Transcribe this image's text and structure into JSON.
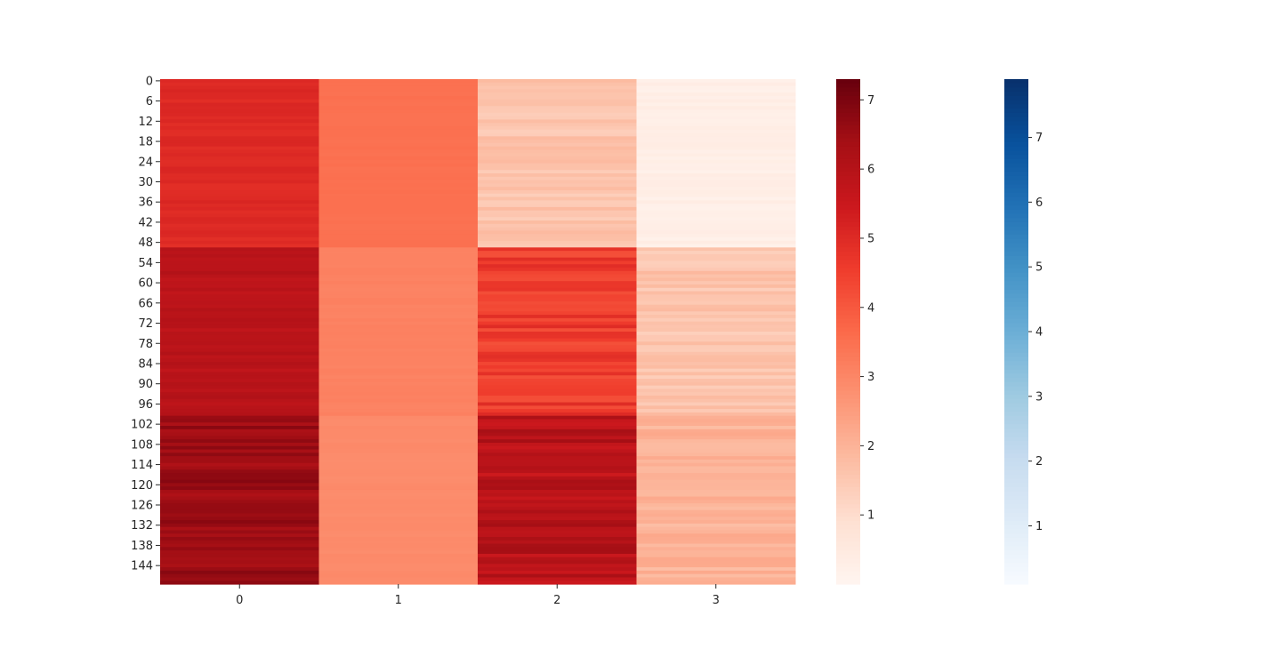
{
  "chart_data": {
    "type": "heatmap",
    "title": "",
    "xlabel": "",
    "ylabel": "",
    "n_rows": 150,
    "columns": [
      "0",
      "1",
      "2",
      "3"
    ],
    "row_tick_labels": [
      "0",
      "6",
      "12",
      "18",
      "24",
      "30",
      "36",
      "42",
      "48",
      "54",
      "60",
      "66",
      "72",
      "78",
      "84",
      "90",
      "96",
      "102",
      "108",
      "114",
      "120",
      "126",
      "132",
      "138",
      "144"
    ],
    "row_tick_step": 6,
    "colormap": "Reds",
    "value_range": [
      0.0,
      7.3
    ],
    "column_profiles": [
      {
        "column": "0",
        "segments": [
          {
            "rows": [
              0,
              49
            ],
            "mean": 5.0,
            "jitter": 0.15
          },
          {
            "rows": [
              50,
              99
            ],
            "mean": 5.9,
            "jitter": 0.2
          },
          {
            "rows": [
              100,
              149
            ],
            "mean": 6.5,
            "jitter": 0.35
          }
        ]
      },
      {
        "column": "1",
        "segments": [
          {
            "rows": [
              0,
              49
            ],
            "mean": 3.5,
            "jitter": 0.04
          },
          {
            "rows": [
              50,
              99
            ],
            "mean": 3.1,
            "jitter": 0.05
          },
          {
            "rows": [
              100,
              149
            ],
            "mean": 2.9,
            "jitter": 0.05
          }
        ]
      },
      {
        "column": "2",
        "segments": [
          {
            "rows": [
              0,
              49
            ],
            "mean": 1.6,
            "jitter": 0.25
          },
          {
            "rows": [
              50,
              99
            ],
            "mean": 4.6,
            "jitter": 0.45
          },
          {
            "rows": [
              100,
              149
            ],
            "mean": 5.9,
            "jitter": 0.5
          }
        ]
      },
      {
        "column": "3",
        "segments": [
          {
            "rows": [
              0,
              49
            ],
            "mean": 0.3,
            "jitter": 0.12
          },
          {
            "rows": [
              50,
              99
            ],
            "mean": 1.6,
            "jitter": 0.3
          },
          {
            "rows": [
              100,
              149
            ],
            "mean": 2.0,
            "jitter": 0.25
          }
        ]
      }
    ],
    "colorbars": [
      {
        "name": "Reds",
        "range": [
          0.0,
          7.3
        ],
        "ticks": [
          1,
          2,
          3,
          4,
          5,
          6,
          7
        ],
        "colors": [
          "#fff5f0",
          "#fee0d2",
          "#fcbba1",
          "#fc9272",
          "#fb6a4a",
          "#ef3b2c",
          "#cb181d",
          "#a50f15",
          "#67000d"
        ]
      },
      {
        "name": "Blues",
        "range": [
          0.1,
          7.9
        ],
        "ticks": [
          1,
          2,
          3,
          4,
          5,
          6,
          7
        ],
        "colors": [
          "#f7fbff",
          "#deebf7",
          "#c6dbef",
          "#9ecae1",
          "#6baed6",
          "#4292c6",
          "#2171b5",
          "#08519c",
          "#08306b"
        ]
      }
    ],
    "grid": false,
    "legend": "none"
  }
}
